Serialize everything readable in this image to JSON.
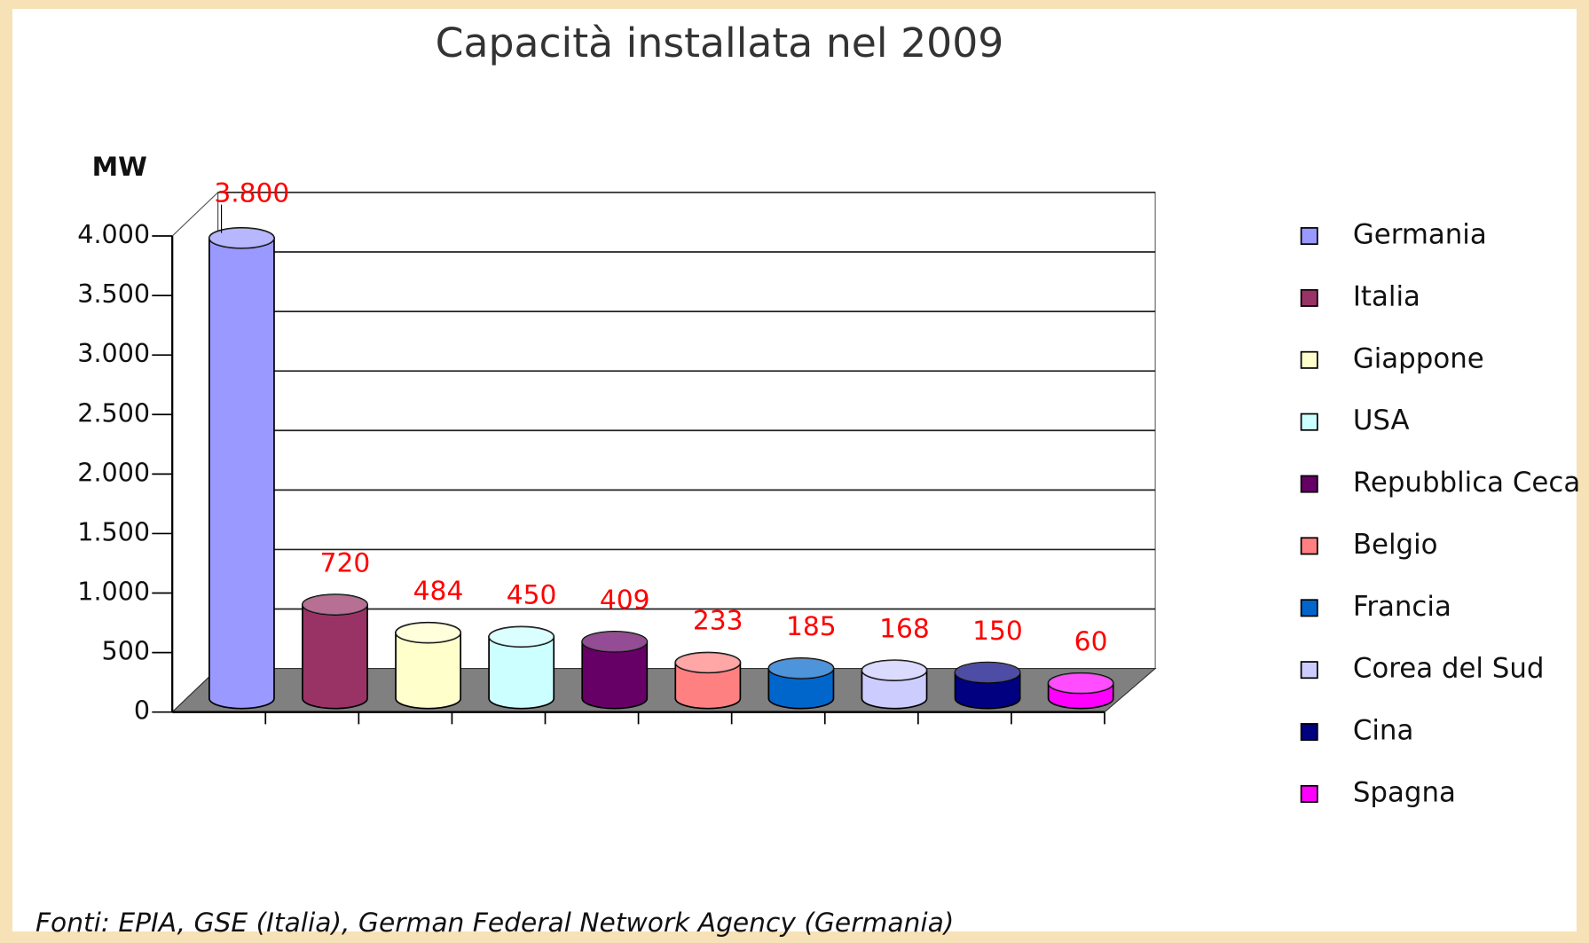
{
  "chart_data": {
    "type": "bar3d",
    "title": "Capacità installata nel 2009",
    "y_label": "MW",
    "categories": [
      "Germania",
      "Italia",
      "Giappone",
      "USA",
      "Repubblica Ceca",
      "Belgio",
      "Francia",
      "Corea del Sud",
      "Cina",
      "Spagna"
    ],
    "values": [
      3800,
      720,
      484,
      450,
      409,
      233,
      185,
      168,
      150,
      60
    ],
    "value_labels": [
      "3.800",
      "720",
      "484",
      "450",
      "409",
      "233",
      "185",
      "168",
      "150",
      "60"
    ],
    "colors": [
      "#9999ff",
      "#993366",
      "#ffffcc",
      "#ccffff",
      "#660066",
      "#ff8080",
      "#0066cc",
      "#ccccff",
      "#000080",
      "#ff00ff"
    ],
    "ylim": [
      0,
      4000
    ],
    "yticks": [
      0,
      500,
      {
        "value": 1000,
        "label": "1.000"
      },
      {
        "value": 1500,
        "label": "1.500"
      },
      {
        "value": 2000,
        "label": "2.000"
      },
      {
        "value": 2500,
        "label": "2.500"
      },
      {
        "value": 3000,
        "label": "3.000"
      },
      {
        "value": 3500,
        "label": "3.500"
      },
      {
        "value": 4000,
        "label": "4.000"
      }
    ],
    "grid": true,
    "legend": "right",
    "source": "Fonti: EPIA, GSE (Italia),  German Federal Network Agency (Germania)"
  }
}
